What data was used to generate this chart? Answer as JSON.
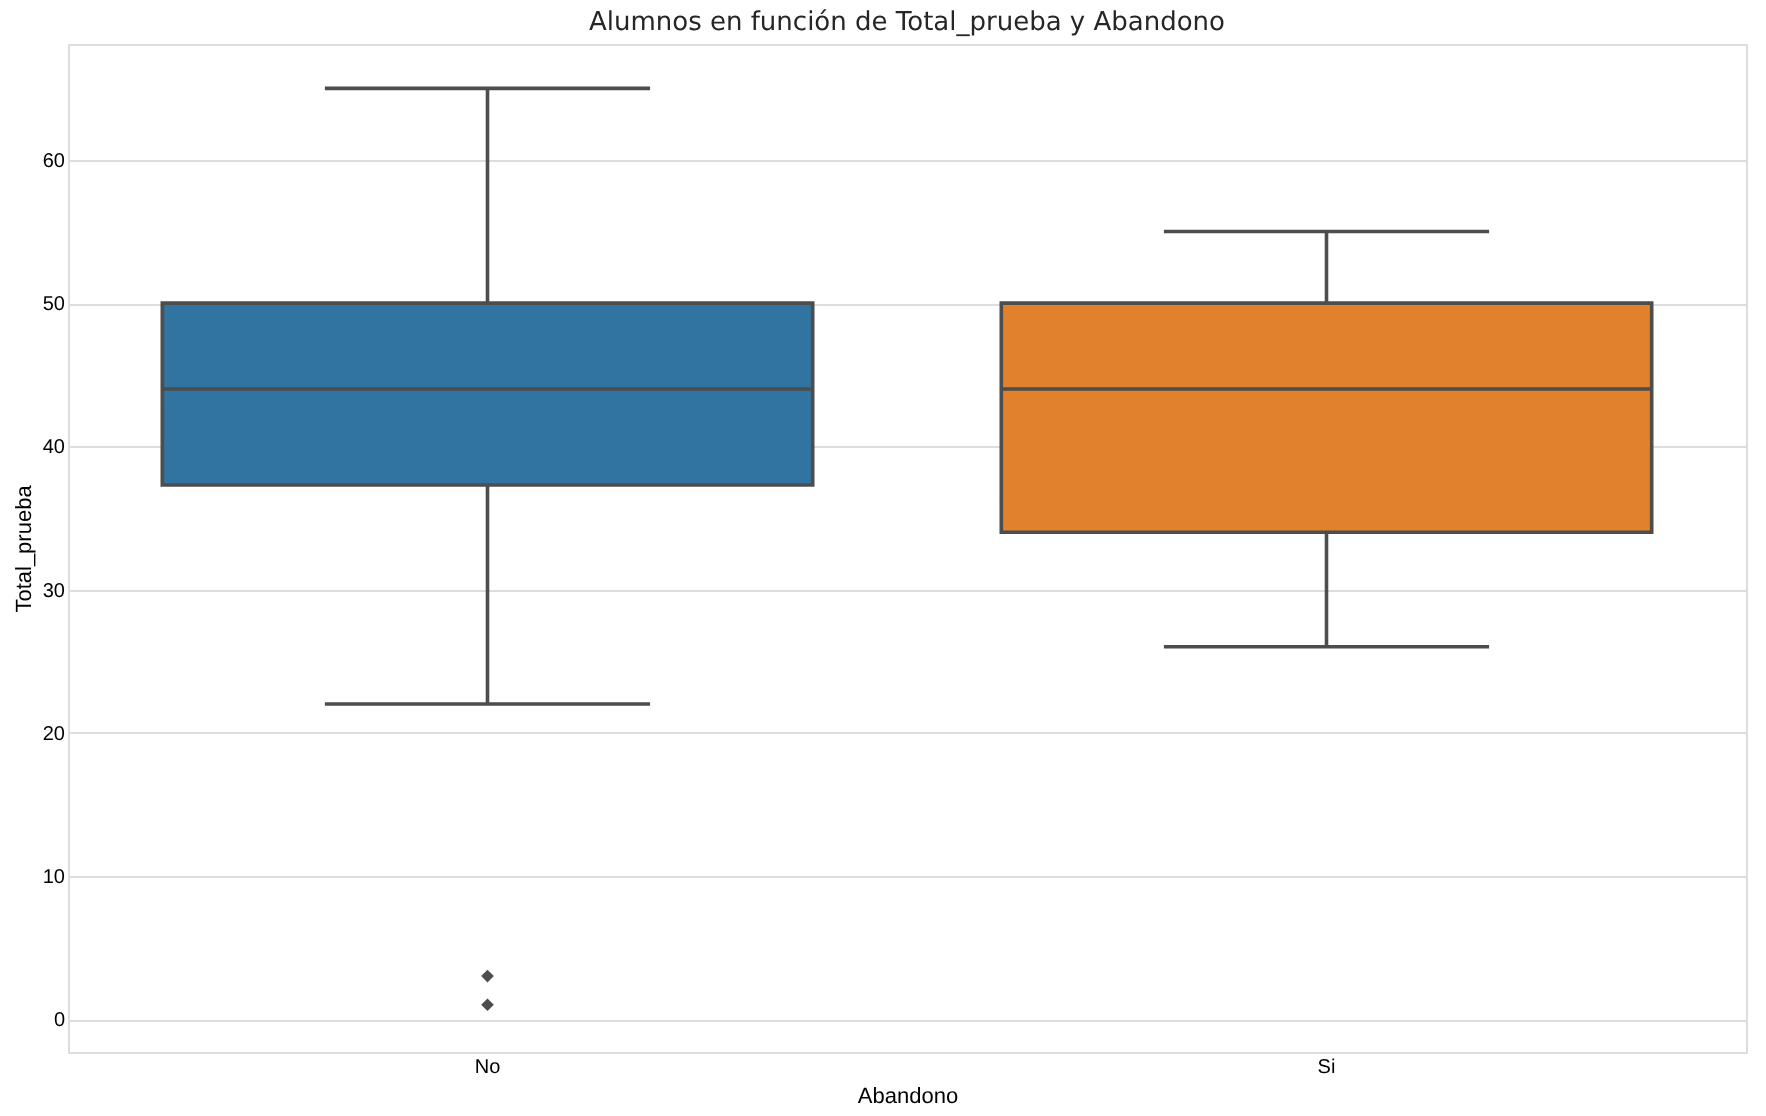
{
  "chart_data": {
    "type": "box",
    "title": "Alumnos en función de Total_prueba y Abandono",
    "xlabel": "Abandono",
    "ylabel": "Total_prueba",
    "categories": [
      "No",
      "Si"
    ],
    "boxes": [
      {
        "low": 22,
        "q1": 37.3,
        "median": 44,
        "q3": 50,
        "high": 65,
        "outliers": [
          3,
          1
        ]
      },
      {
        "low": 26,
        "q1": 34,
        "median": 44,
        "q3": 50,
        "high": 55
      }
    ],
    "colors": [
      "#3274a1",
      "#e1812c"
    ],
    "ylim": [
      -2.3,
      68.1
    ],
    "yticks": [
      0,
      10,
      20,
      30,
      40,
      50,
      60
    ],
    "grid": "y",
    "marker": "diamond"
  }
}
